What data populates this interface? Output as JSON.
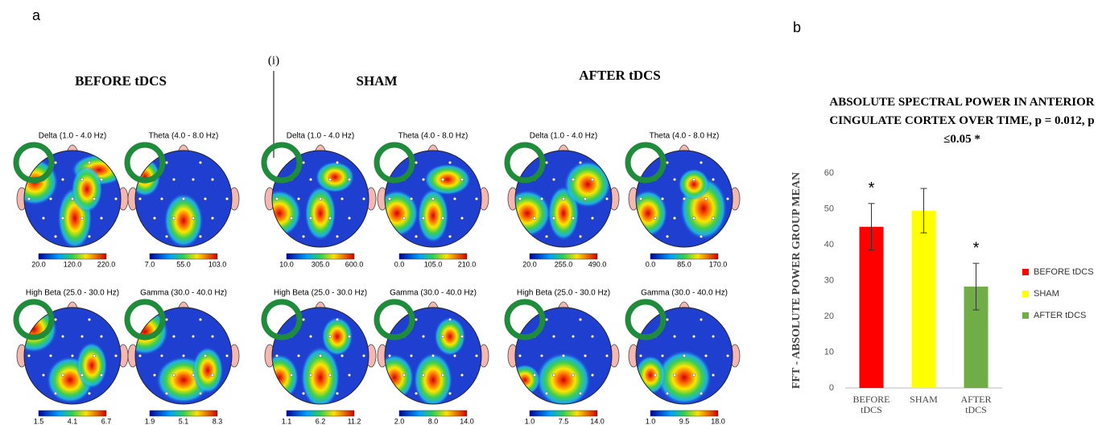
{
  "panel_a": {
    "label": "a",
    "annotation": "(i)",
    "groups": [
      {
        "title": "BEFORE tDCS",
        "maps": [
          {
            "title": "Delta (1.0 - 4.0 Hz)",
            "scale": [
              "20.0",
              "120.0",
              "220.0"
            ]
          },
          {
            "title": "Theta (4.0 - 8.0 Hz)",
            "scale": [
              "7.0",
              "55.0",
              "103.0"
            ]
          },
          {
            "title": "High Beta (25.0 - 30.0 Hz)",
            "scale": [
              "1.5",
              "4.1",
              "6.7"
            ]
          },
          {
            "title": "Gamma (30.0 - 40.0 Hz)",
            "scale": [
              "1.9",
              "5.1",
              "8.3"
            ]
          }
        ]
      },
      {
        "title": "SHAM",
        "maps": [
          {
            "title": "Delta (1.0 - 4.0 Hz)",
            "scale": [
              "10.0",
              "305.0",
              "600.0"
            ]
          },
          {
            "title": "Theta (4.0 - 8.0 Hz)",
            "scale": [
              "0.0",
              "105.0",
              "210.0"
            ]
          },
          {
            "title": "High Beta (25.0 - 30.0 Hz)",
            "scale": [
              "1.1",
              "6.2",
              "11.2"
            ]
          },
          {
            "title": "Gamma (30.0 - 40.0 Hz)",
            "scale": [
              "2.0",
              "8.0",
              "14.0"
            ]
          }
        ]
      },
      {
        "title": "AFTER tDCS",
        "maps": [
          {
            "title": "Delta (1.0 - 4.0 Hz)",
            "scale": [
              "20.0",
              "255.0",
              "490.0"
            ]
          },
          {
            "title": "Theta (4.0 - 8.0 Hz)",
            "scale": [
              "0.0",
              "85.0",
              "170.0"
            ]
          },
          {
            "title": "High Beta (25.0 - 30.0 Hz)",
            "scale": [
              "1.0",
              "7.5",
              "14.0"
            ]
          },
          {
            "title": "Gamma (30.0 - 40.0 Hz)",
            "scale": [
              "1.0",
              "9.5",
              "18.0"
            ]
          }
        ]
      }
    ]
  },
  "panel_b_label": "b",
  "chart_data": {
    "type": "bar",
    "title": "ABSOLUTE SPECTRAL POWER IN ANTERIOR CINGULATE CORTEX OVER TIME, p = 0.012, p ≤0.05 *",
    "y_label": "FFT - ABSOLUTE POWER GROUP MEAN",
    "categories": [
      "BEFORE tDCS",
      "SHAM",
      "AFTER tDCS"
    ],
    "series": [
      {
        "name": "BEFORE tDCS",
        "color": "#ff0000",
        "values": [
          45,
          null,
          null
        ],
        "errors": [
          6.5,
          null,
          null
        ],
        "annotations": [
          "*",
          null,
          null
        ]
      },
      {
        "name": "SHAM",
        "color": "#ffff00",
        "values": [
          null,
          49.5,
          null
        ],
        "errors": [
          null,
          6.2,
          null
        ],
        "annotations": [
          null,
          null,
          null
        ]
      },
      {
        "name": "AFTER tDCS",
        "color": "#70ad47",
        "values": [
          null,
          null,
          28.3
        ],
        "errors": [
          null,
          null,
          6.5
        ],
        "annotations": [
          null,
          null,
          "*"
        ]
      }
    ],
    "ylim": [
      0,
      60
    ],
    "yticks": [
      0,
      10,
      20,
      30,
      40,
      50,
      60
    ],
    "grid": false,
    "legend": "right"
  }
}
